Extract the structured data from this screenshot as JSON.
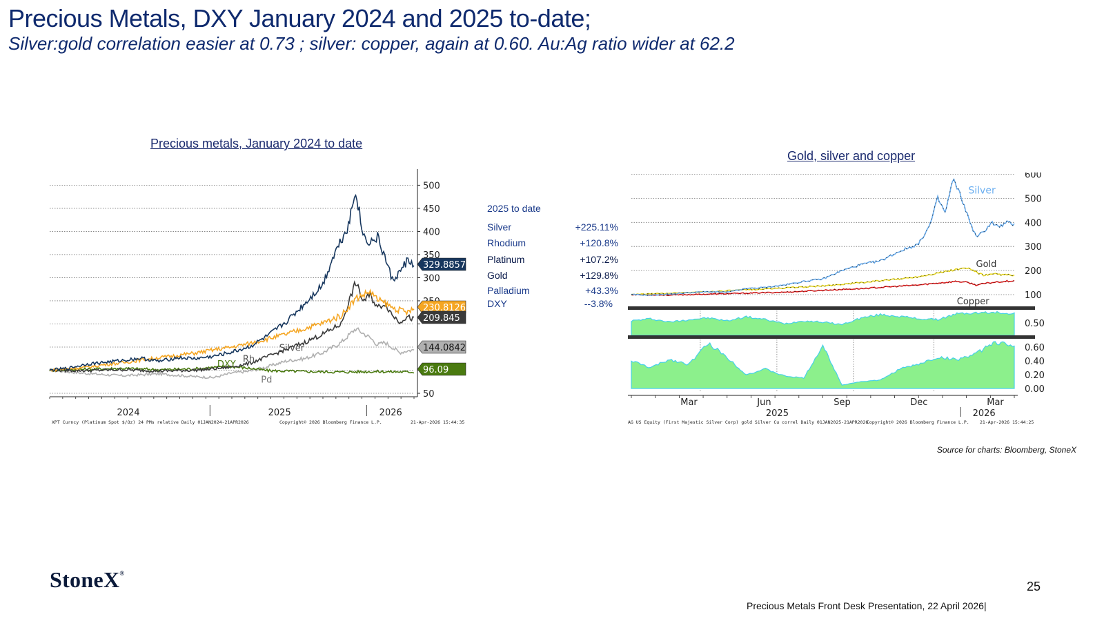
{
  "slide": {
    "title": "Precious Metals, DXY January 2024 and 2025 to-date;",
    "subtitle": "Silver:gold correlation easier at 0.73 ; silver: copper, again at 0.60.  Au:Ag ratio wider at 62.2",
    "source": "Source for charts: Bloomberg, StoneX",
    "logo": "StoneX",
    "logo_mark": "®",
    "page_number": "25",
    "footer": "Precious Metals Front Desk Presentation, 22 April 2026|"
  },
  "legend": {
    "heading": "2025 to date",
    "rows": [
      {
        "name": "Silver",
        "value": "+225.11%"
      },
      {
        "name": "Rhodium",
        "value": "+120.8%"
      },
      {
        "name": "Platinum",
        "value": "+107.2%"
      },
      {
        "name": "Gold",
        "value": "+129.8%"
      },
      {
        "name": "Palladium",
        "value": "+43.3%"
      },
      {
        "name": "DXY",
        "value": "--3.8%"
      }
    ]
  },
  "colors": {
    "navy": "#17375e",
    "orange": "#f5a623",
    "dark_gray": "#3a3a3a",
    "light_gray": "#b0b0b0",
    "green": "#4a7a10",
    "silver_blue": "#6aaef0",
    "gold_yellow": "#e8d820",
    "copper_red": "#e02020",
    "area_green": "#8cf08c"
  },
  "chart_data": [
    {
      "type": "line",
      "title": "Precious metals, January 2024 to date",
      "x_ticks": [
        "2024",
        "2025",
        "2026"
      ],
      "y_ticks": [
        50,
        100,
        150,
        200,
        250,
        300,
        350,
        400,
        450,
        500
      ],
      "y_tick_labels": [
        "50",
        "",
        "",
        "",
        "250",
        "300",
        "350",
        "400",
        "450",
        "500"
      ],
      "ylim": [
        50,
        520
      ],
      "footnote_left": "XPT Curncy (Platinum Spot $/Oz) 24 PMs relative Daily 01JAN2024-21APR2026",
      "footnote_mid": "Copyright© 2026 Bloomberg Finance L.P.",
      "footnote_right": "21-Apr-2026 15:44:35",
      "series_labels": [
        "Silver",
        "Rh",
        "Pd",
        "DXY"
      ],
      "last_value_tags": [
        {
          "value": 329.8857,
          "label": "329.8857",
          "color": "#17375e"
        },
        {
          "value": 230.8126,
          "label": "230.8126",
          "color": "#f5a623"
        },
        {
          "value": 209.845,
          "label": "209.845",
          "color": "#3a3a3a"
        },
        {
          "value": 144.0842,
          "label": "144.0842",
          "color": "#b0b0b0"
        },
        {
          "value": 96.09,
          "label": "96.09",
          "color": "#4a7a10"
        }
      ],
      "series": [
        {
          "name": "Silver",
          "color": "#17375e",
          "x": [
            0.0,
            0.05,
            0.1,
            0.15,
            0.2,
            0.25,
            0.3,
            0.35,
            0.4,
            0.45,
            0.5,
            0.55,
            0.6,
            0.65,
            0.7,
            0.75,
            0.78,
            0.82,
            0.84,
            0.86,
            0.88,
            0.9,
            0.92,
            0.94,
            0.96,
            0.98,
            1.0
          ],
          "values": [
            100,
            104,
            113,
            117,
            121,
            126,
            119,
            127,
            125,
            130,
            139,
            151,
            175,
            205,
            244,
            286,
            350,
            414,
            490,
            392,
            376,
            387,
            345,
            295,
            310,
            336,
            330
          ]
        },
        {
          "name": "Gold",
          "color": "#f5a623",
          "x": [
            0.0,
            0.05,
            0.1,
            0.15,
            0.2,
            0.25,
            0.3,
            0.35,
            0.4,
            0.45,
            0.5,
            0.55,
            0.6,
            0.65,
            0.7,
            0.75,
            0.8,
            0.84,
            0.88,
            0.9,
            0.92,
            0.94,
            0.96,
            0.98,
            1.0
          ],
          "values": [
            100,
            103,
            106,
            112,
            116,
            122,
            127,
            132,
            137,
            144,
            150,
            158,
            168,
            178,
            190,
            202,
            218,
            255,
            270,
            252,
            245,
            235,
            230,
            225,
            231
          ]
        },
        {
          "name": "Platinum",
          "color": "#3a3a3a",
          "x": [
            0.0,
            0.1,
            0.2,
            0.3,
            0.4,
            0.45,
            0.5,
            0.55,
            0.6,
            0.65,
            0.7,
            0.75,
            0.8,
            0.82,
            0.84,
            0.86,
            0.88,
            0.9,
            0.92,
            0.94,
            0.96,
            0.98,
            1.0
          ],
          "values": [
            100,
            99,
            101,
            98,
            100,
            103,
            107,
            115,
            130,
            145,
            160,
            178,
            200,
            245,
            290,
            250,
            262,
            235,
            245,
            220,
            205,
            215,
            210
          ]
        },
        {
          "name": "Palladium",
          "color": "#b0b0b0",
          "x": [
            0.0,
            0.1,
            0.2,
            0.3,
            0.4,
            0.45,
            0.5,
            0.55,
            0.6,
            0.65,
            0.7,
            0.75,
            0.8,
            0.84,
            0.88,
            0.9,
            0.92,
            0.94,
            0.96,
            0.98,
            1.0
          ],
          "values": [
            100,
            93,
            88,
            92,
            86,
            84,
            94,
            98,
            108,
            120,
            125,
            138,
            160,
            190,
            170,
            155,
            160,
            150,
            138,
            142,
            144
          ]
        },
        {
          "name": "DXY",
          "color": "#4a7a10",
          "x": [
            0.0,
            0.1,
            0.2,
            0.3,
            0.4,
            0.45,
            0.5,
            0.55,
            0.6,
            0.7,
            0.8,
            0.9,
            1.0
          ],
          "values": [
            100,
            102,
            104,
            101,
            103,
            106,
            108,
            104,
            99,
            97,
            96,
            97,
            96
          ]
        }
      ]
    },
    {
      "type": "line",
      "title": "Gold, silver and copper",
      "x_ticks": [
        "Mar",
        "Jun",
        "Sep",
        "Dec",
        "Mar"
      ],
      "year_ticks": [
        "2025",
        "2026"
      ],
      "panels": [
        {
          "type": "line",
          "y_ticks": [
            100,
            200,
            300,
            400,
            500,
            600
          ],
          "ylim": [
            100,
            610
          ],
          "series": [
            {
              "name": "Silver",
              "color": "#6aaef0",
              "x": [
                0.0,
                0.05,
                0.1,
                0.15,
                0.2,
                0.25,
                0.3,
                0.35,
                0.4,
                0.45,
                0.5,
                0.55,
                0.6,
                0.65,
                0.7,
                0.75,
                0.78,
                0.8,
                0.82,
                0.84,
                0.86,
                0.88,
                0.9,
                0.92,
                0.94,
                0.96,
                0.98,
                1.0
              ],
              "values": [
                100,
                98,
                102,
                108,
                112,
                110,
                125,
                130,
                140,
                155,
                165,
                200,
                225,
                240,
                280,
                310,
                390,
                500,
                440,
                580,
                510,
                420,
                340,
                360,
                400,
                380,
                400,
                390
              ]
            },
            {
              "name": "Gold",
              "color": "#e8d820",
              "x": [
                0.0,
                0.1,
                0.2,
                0.3,
                0.4,
                0.5,
                0.6,
                0.7,
                0.75,
                0.8,
                0.85,
                0.88,
                0.9,
                0.92,
                0.95,
                1.0
              ],
              "values": [
                100,
                106,
                112,
                120,
                128,
                136,
                150,
                165,
                175,
                190,
                205,
                210,
                195,
                180,
                185,
                180
              ]
            },
            {
              "name": "Copper",
              "color": "#e02020",
              "x": [
                0.0,
                0.1,
                0.2,
                0.3,
                0.4,
                0.5,
                0.6,
                0.7,
                0.75,
                0.8,
                0.85,
                0.88,
                0.9,
                0.92,
                0.95,
                1.0
              ],
              "values": [
                100,
                98,
                102,
                106,
                110,
                118,
                125,
                135,
                140,
                148,
                155,
                150,
                140,
                145,
                152,
                158
              ]
            }
          ],
          "labels": [
            "Silver",
            "Gold",
            "Copper"
          ]
        },
        {
          "type": "area",
          "name": "gold Silver correl",
          "y_ticks": [
            0.5
          ],
          "ylim": [
            0.2,
            0.8
          ],
          "x": [
            0.0,
            0.05,
            0.1,
            0.15,
            0.2,
            0.25,
            0.3,
            0.35,
            0.4,
            0.45,
            0.5,
            0.55,
            0.6,
            0.65,
            0.7,
            0.75,
            0.8,
            0.85,
            0.9,
            0.95,
            1.0
          ],
          "values": [
            0.55,
            0.6,
            0.52,
            0.58,
            0.62,
            0.55,
            0.65,
            0.58,
            0.48,
            0.55,
            0.52,
            0.46,
            0.62,
            0.7,
            0.66,
            0.6,
            0.58,
            0.72,
            0.74,
            0.75,
            0.73
          ]
        },
        {
          "type": "area",
          "name": "Silver Cu correl",
          "y_ticks": [
            0.0,
            0.2,
            0.4,
            0.6
          ],
          "ylim": [
            -0.05,
            0.7
          ],
          "x": [
            0.0,
            0.05,
            0.1,
            0.15,
            0.2,
            0.22,
            0.25,
            0.3,
            0.35,
            0.4,
            0.45,
            0.5,
            0.55,
            0.6,
            0.65,
            0.7,
            0.75,
            0.8,
            0.85,
            0.9,
            0.95,
            1.0
          ],
          "values": [
            0.4,
            0.3,
            0.42,
            0.35,
            0.65,
            0.58,
            0.45,
            0.2,
            0.28,
            0.18,
            0.15,
            0.62,
            0.05,
            0.1,
            0.12,
            0.28,
            0.35,
            0.45,
            0.42,
            0.5,
            0.68,
            0.6
          ]
        }
      ],
      "footnote_left": "AG US Equity (First Majestic Silver Corp) gold Silver Cu correl Daily 01JAN2025-21APR2026",
      "footnote_mid": "Copyright© 2026 Bloomberg Finance L.P.",
      "footnote_right": "21-Apr-2026 15:44:25"
    }
  ]
}
